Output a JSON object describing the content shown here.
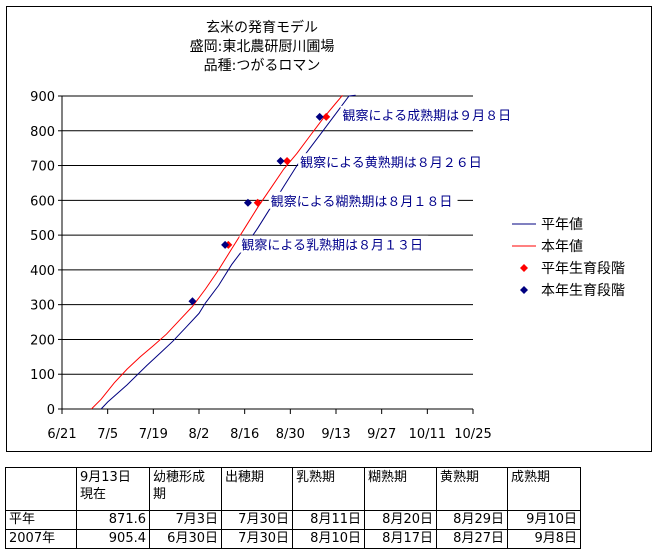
{
  "chart_data": {
    "type": "line",
    "title": [
      "玄米の発育モデル",
      "盛岡:東北農研厨川圃場",
      "品種:つがるロマン"
    ],
    "x_ticks": [
      "6/21",
      "7/5",
      "7/19",
      "8/2",
      "8/16",
      "8/30",
      "9/13",
      "9/27",
      "10/11",
      "10/25"
    ],
    "x_tick_days": [
      0,
      14,
      28,
      42,
      56,
      70,
      84,
      98,
      112,
      126
    ],
    "xlim": [
      0,
      126
    ],
    "y_ticks": [
      "0",
      "100",
      "200",
      "300",
      "400",
      "500",
      "600",
      "700",
      "800",
      "900"
    ],
    "ylim": [
      0,
      900
    ],
    "grid": "horizontal",
    "series": [
      {
        "name": "平年値",
        "color": "#000080",
        "style": "line",
        "points": [
          [
            12,
            0
          ],
          [
            14,
            20
          ],
          [
            20,
            70
          ],
          [
            26,
            125
          ],
          [
            30,
            160
          ],
          [
            34,
            195
          ],
          [
            38,
            235
          ],
          [
            42,
            275
          ],
          [
            44,
            305
          ],
          [
            48,
            355
          ],
          [
            52,
            415
          ],
          [
            56,
            465
          ],
          [
            60,
            520
          ],
          [
            64,
            580
          ],
          [
            68,
            640
          ],
          [
            72,
            700
          ],
          [
            76,
            750
          ],
          [
            80,
            800
          ],
          [
            84,
            850
          ],
          [
            88,
            900
          ],
          [
            90,
            915
          ]
        ]
      },
      {
        "name": "本年値",
        "color": "#ff0000",
        "style": "line",
        "points": [
          [
            9,
            0
          ],
          [
            12,
            28
          ],
          [
            16,
            75
          ],
          [
            20,
            115
          ],
          [
            24,
            150
          ],
          [
            28,
            182
          ],
          [
            32,
            215
          ],
          [
            36,
            255
          ],
          [
            40,
            295
          ],
          [
            44,
            345
          ],
          [
            48,
            400
          ],
          [
            52,
            460
          ],
          [
            56,
            520
          ],
          [
            60,
            580
          ],
          [
            64,
            635
          ],
          [
            68,
            690
          ],
          [
            72,
            735
          ],
          [
            76,
            785
          ],
          [
            80,
            835
          ],
          [
            84,
            880
          ],
          [
            86,
            905
          ]
        ]
      },
      {
        "name": "平年生育段階",
        "color": "#ff0000",
        "style": "marker",
        "points": [
          [
            51,
            472
          ],
          [
            60,
            593
          ],
          [
            69,
            713
          ],
          [
            81,
            840
          ]
        ]
      },
      {
        "name": "本年生育段階",
        "color": "#000080",
        "style": "marker",
        "points": [
          [
            40,
            310
          ],
          [
            50,
            472
          ],
          [
            57,
            593
          ],
          [
            67,
            713
          ],
          [
            79,
            840
          ]
        ]
      }
    ],
    "annotations": [
      {
        "text": "観察による成熟期は９月８日",
        "x": 86,
        "y": 840
      },
      {
        "text": "観察による黄熟期は８月２６日",
        "x": 73,
        "y": 704
      },
      {
        "text": "観察による糊熟期は８月１８日",
        "x": 64,
        "y": 593
      },
      {
        "text": "観察による乳熟期は８月１３日",
        "x": 55,
        "y": 467
      }
    ],
    "legend_position": "right",
    "legend": [
      "平年値",
      "本年値",
      "平年生育段階",
      "本年生育段階"
    ]
  },
  "table": {
    "header": [
      "",
      "9月13日\n現在",
      "幼穂形成\n期",
      "出穂期",
      "乳熟期",
      "糊熟期",
      "黄熟期",
      "成熟期"
    ],
    "rows": [
      [
        "平年",
        "871.6",
        "7月3日",
        "7月30日",
        "8月11日",
        "8月20日",
        "8月29日",
        "9月10日"
      ],
      [
        "2007年",
        "905.4",
        "6月30日",
        "7月30日",
        "8月10日",
        "8月17日",
        "8月27日",
        "9月8日"
      ]
    ]
  }
}
